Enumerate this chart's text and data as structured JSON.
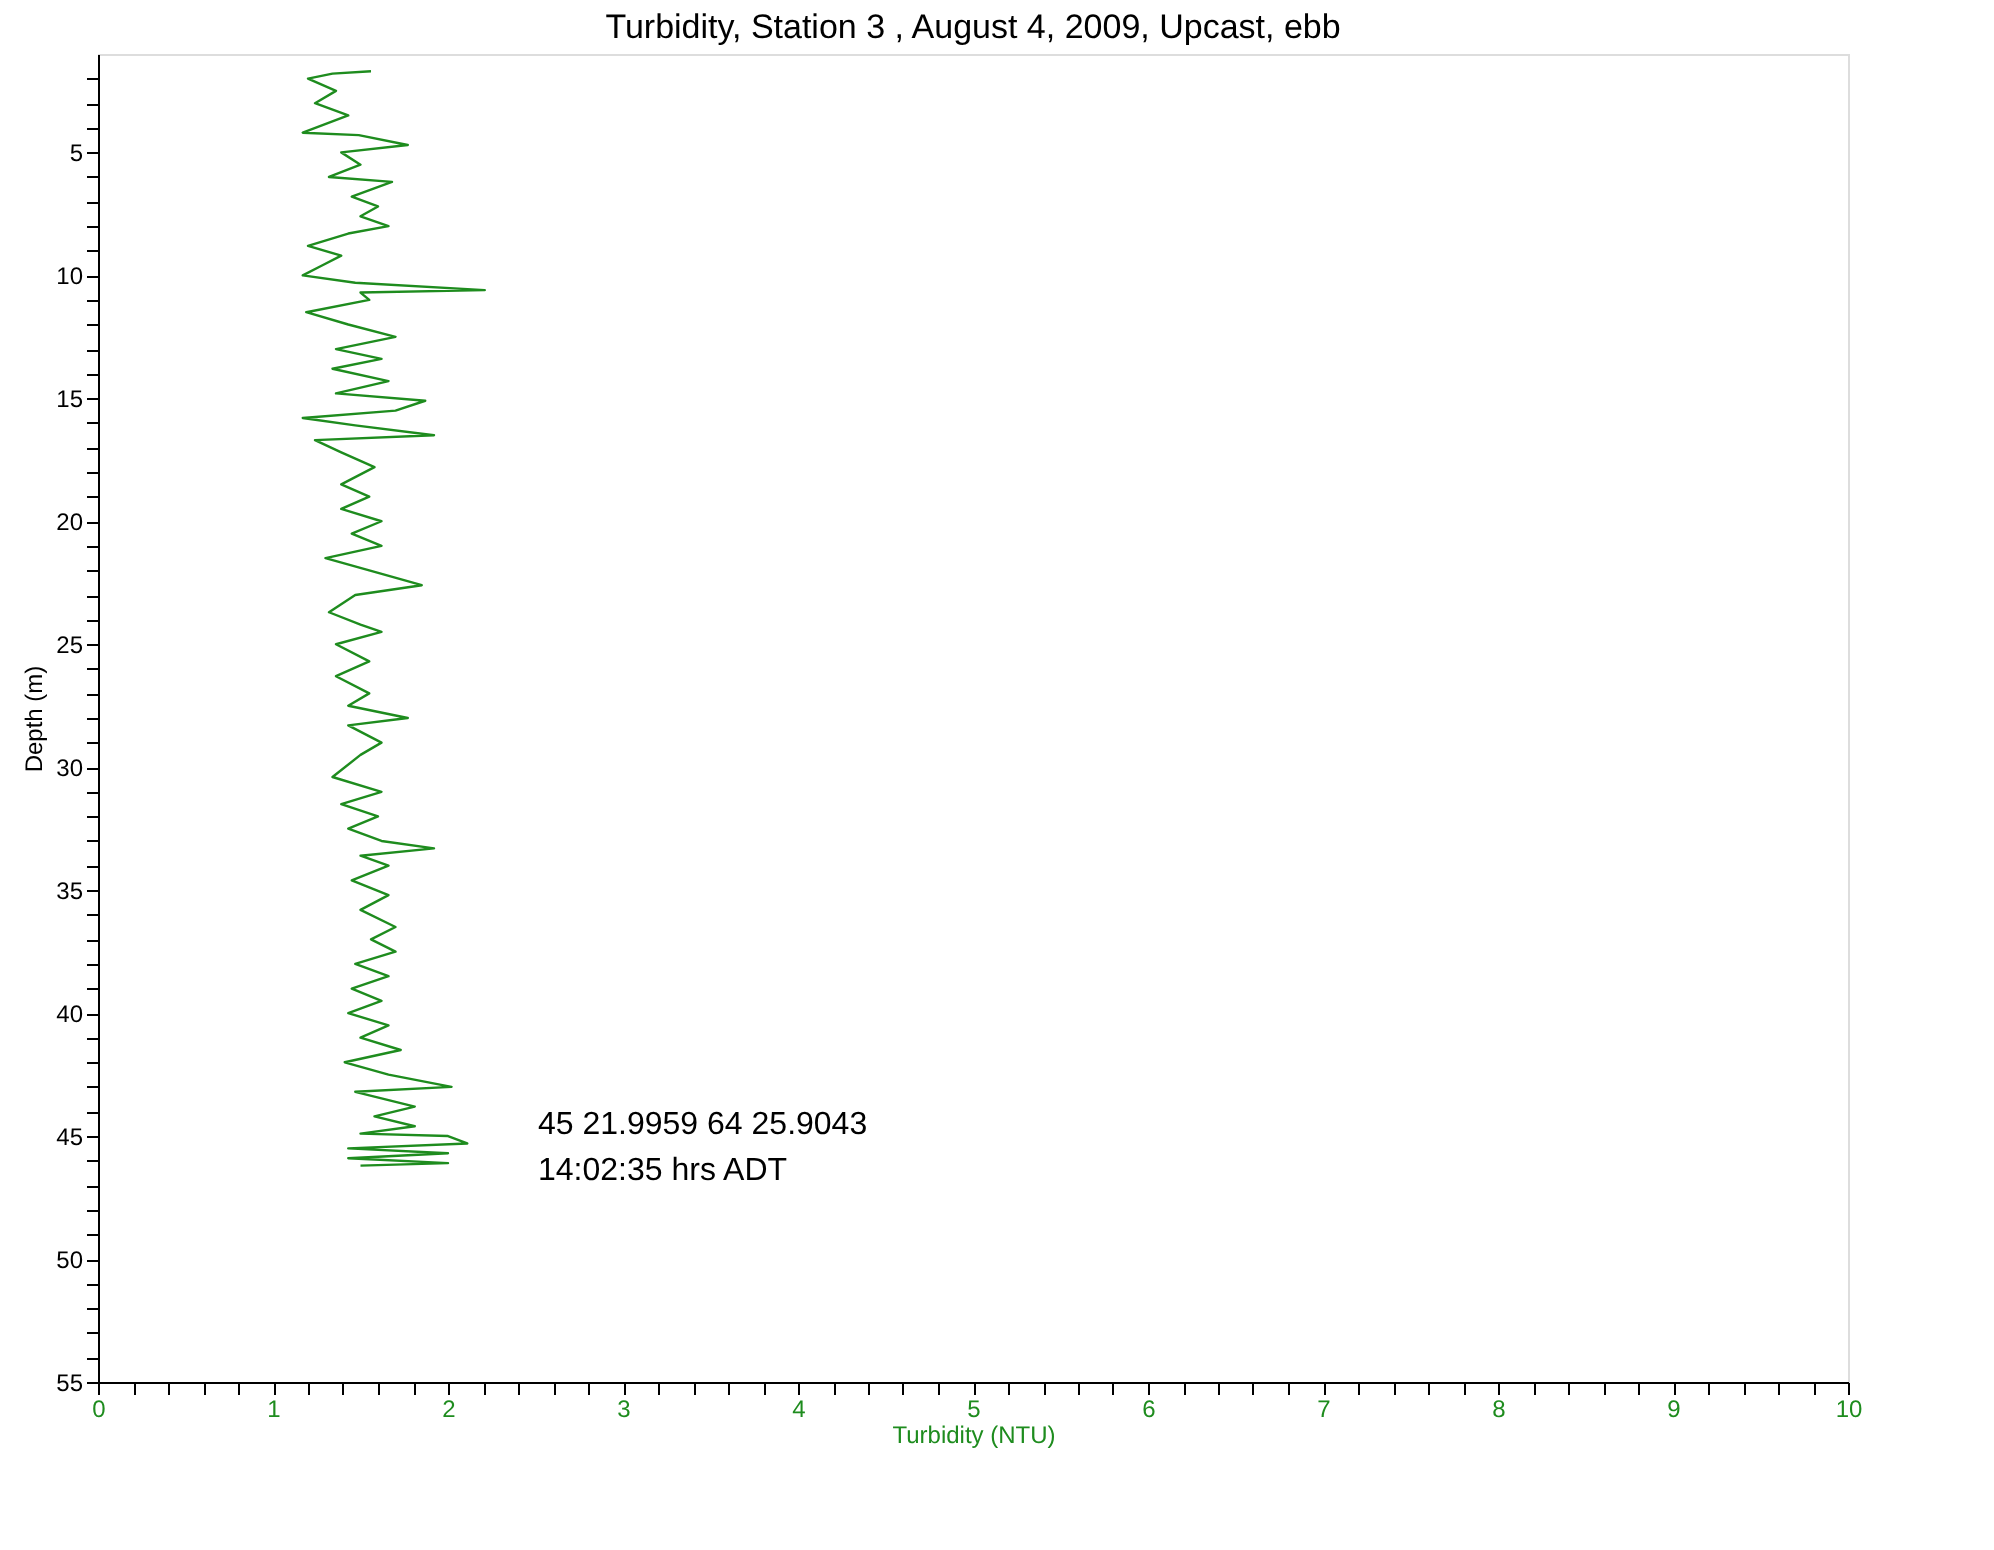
{
  "chart_data": {
    "type": "line",
    "title": "Turbidity, Station 3 , August 4, 2009, Upcast, ebb",
    "xlabel": "Turbidity (NTU)",
    "ylabel": "Depth (m)",
    "xlim": [
      0,
      10
    ],
    "ylim": [
      55,
      1
    ],
    "xticks": [
      0,
      {
        "value": 0.2,
        "label": null
      },
      {
        "value": 0.4,
        "label": null
      },
      {
        "value": 0.6,
        "label": null
      },
      {
        "value": 0.8,
        "label": null
      },
      1,
      {
        "value": 1.2,
        "label": null
      },
      {
        "value": 1.4,
        "label": null
      },
      {
        "value": 1.6,
        "label": null
      },
      {
        "value": 1.8,
        "label": null
      },
      2,
      {
        "value": 2.2,
        "label": null
      },
      {
        "value": 2.4,
        "label": null
      },
      {
        "value": 2.6,
        "label": null
      },
      {
        "value": 2.8,
        "label": null
      },
      3,
      {
        "value": 3.2,
        "label": null
      },
      {
        "value": 3.4,
        "label": null
      },
      {
        "value": 3.6,
        "label": null
      },
      {
        "value": 3.8,
        "label": null
      },
      4,
      {
        "value": 4.2,
        "label": null
      },
      {
        "value": 4.4,
        "label": null
      },
      {
        "value": 4.6,
        "label": null
      },
      {
        "value": 4.8,
        "label": null
      },
      5,
      {
        "value": 5.2,
        "label": null
      },
      {
        "value": 5.4,
        "label": null
      },
      {
        "value": 5.6,
        "label": null
      },
      {
        "value": 5.8,
        "label": null
      },
      6,
      {
        "value": 6.2,
        "label": null
      },
      {
        "value": 6.4,
        "label": null
      },
      {
        "value": 6.6,
        "label": null
      },
      {
        "value": 6.8,
        "label": null
      },
      7,
      {
        "value": 7.2,
        "label": null
      },
      {
        "value": 7.4,
        "label": null
      },
      {
        "value": 7.6,
        "label": null
      },
      {
        "value": 7.8,
        "label": null
      },
      8,
      {
        "value": 8.2,
        "label": null
      },
      {
        "value": 8.4,
        "label": null
      },
      {
        "value": 8.6,
        "label": null
      },
      {
        "value": 8.8,
        "label": null
      },
      9,
      {
        "value": 9.2,
        "label": null
      },
      {
        "value": 9.4,
        "label": null
      },
      {
        "value": 9.6,
        "label": null
      },
      {
        "value": 9.8,
        "label": null
      },
      10
    ],
    "yticks": [
      {
        "value": 2,
        "label": null
      },
      {
        "value": 3,
        "label": null
      },
      {
        "value": 4,
        "label": null
      },
      5,
      {
        "value": 6,
        "label": null
      },
      {
        "value": 7,
        "label": null
      },
      {
        "value": 8,
        "label": null
      },
      {
        "value": 9,
        "label": null
      },
      10,
      {
        "value": 11,
        "label": null
      },
      {
        "value": 12,
        "label": null
      },
      {
        "value": 13,
        "label": null
      },
      {
        "value": 14,
        "label": null
      },
      15,
      {
        "value": 16,
        "label": null
      },
      {
        "value": 17,
        "label": null
      },
      {
        "value": 18,
        "label": null
      },
      {
        "value": 19,
        "label": null
      },
      20,
      {
        "value": 21,
        "label": null
      },
      {
        "value": 22,
        "label": null
      },
      {
        "value": 23,
        "label": null
      },
      {
        "value": 24,
        "label": null
      },
      25,
      {
        "value": 26,
        "label": null
      },
      {
        "value": 27,
        "label": null
      },
      {
        "value": 28,
        "label": null
      },
      {
        "value": 29,
        "label": null
      },
      30,
      {
        "value": 31,
        "label": null
      },
      {
        "value": 32,
        "label": null
      },
      {
        "value": 33,
        "label": null
      },
      {
        "value": 34,
        "label": null
      },
      35,
      {
        "value": 36,
        "label": null
      },
      {
        "value": 37,
        "label": null
      },
      {
        "value": 38,
        "label": null
      },
      {
        "value": 39,
        "label": null
      },
      40,
      {
        "value": 41,
        "label": null
      },
      {
        "value": 42,
        "label": null
      },
      {
        "value": 43,
        "label": null
      },
      {
        "value": 44,
        "label": null
      },
      45,
      {
        "value": 46,
        "label": null
      },
      {
        "value": 47,
        "label": null
      },
      {
        "value": 48,
        "label": null
      },
      {
        "value": 49,
        "label": null
      },
      50,
      {
        "value": 51,
        "label": null
      },
      {
        "value": 52,
        "label": null
      },
      {
        "value": 53,
        "label": null
      },
      {
        "value": 54,
        "label": null
      },
      55
    ],
    "grid": false,
    "marker": "none",
    "line_style": "solid",
    "annotations": [
      "45 21.9959  64 25.9043",
      "14:02:35 hrs ADT"
    ],
    "series": [
      {
        "color": "#1e8c1e",
        "x": [
          1.56,
          1.34,
          1.2,
          1.36,
          1.24,
          1.43,
          1.17,
          1.49,
          1.77,
          1.39,
          1.5,
          1.32,
          1.68,
          1.45,
          1.6,
          1.5,
          1.66,
          1.43,
          1.2,
          1.39,
          1.28,
          1.17,
          1.47,
          2.21,
          1.5,
          1.55,
          1.19,
          1.43,
          1.7,
          1.36,
          1.62,
          1.34,
          1.66,
          1.36,
          1.87,
          1.7,
          1.17,
          1.47,
          1.92,
          1.24,
          1.39,
          1.58,
          1.39,
          1.55,
          1.39,
          1.62,
          1.45,
          1.62,
          1.3,
          1.55,
          1.85,
          1.47,
          1.32,
          1.5,
          1.62,
          1.36,
          1.55,
          1.36,
          1.55,
          1.43,
          1.77,
          1.43,
          1.62,
          1.5,
          1.34,
          1.62,
          1.39,
          1.6,
          1.43,
          1.62,
          1.92,
          1.5,
          1.66,
          1.45,
          1.66,
          1.5,
          1.7,
          1.56,
          1.7,
          1.47,
          1.66,
          1.45,
          1.62,
          1.43,
          1.66,
          1.5,
          1.73,
          1.41,
          1.66,
          2.02,
          1.47,
          1.81,
          1.58,
          1.81,
          1.5,
          2.0,
          2.11,
          1.43,
          2.0,
          1.43,
          2.0,
          1.5
        ],
        "values": [
          1.7,
          1.8,
          2.0,
          2.5,
          3.0,
          3.5,
          4.2,
          4.3,
          4.7,
          5.0,
          5.5,
          6.0,
          6.2,
          6.8,
          7.2,
          7.6,
          8.0,
          8.3,
          8.8,
          9.2,
          9.6,
          10.0,
          10.3,
          10.6,
          10.7,
          11.0,
          11.5,
          12.0,
          12.5,
          13.0,
          13.4,
          13.8,
          14.3,
          14.8,
          15.1,
          15.5,
          15.8,
          16.1,
          16.5,
          16.7,
          17.2,
          17.8,
          18.5,
          19.0,
          19.5,
          20.0,
          20.5,
          21.0,
          21.5,
          22.0,
          22.6,
          23.0,
          23.7,
          24.2,
          24.5,
          25.0,
          25.7,
          26.3,
          27.0,
          27.5,
          28.0,
          28.3,
          29.0,
          29.5,
          30.4,
          31.0,
          31.5,
          32.0,
          32.5,
          33.0,
          33.3,
          33.6,
          34.0,
          34.6,
          35.2,
          35.8,
          36.5,
          37.0,
          37.5,
          38.0,
          38.5,
          39.0,
          39.5,
          40.0,
          40.5,
          41.0,
          41.5,
          42.0,
          42.5,
          43.0,
          43.2,
          43.8,
          44.2,
          44.6,
          44.9,
          45.0,
          45.3,
          45.5,
          45.7,
          45.9,
          46.1,
          46.2
        ]
      }
    ]
  }
}
